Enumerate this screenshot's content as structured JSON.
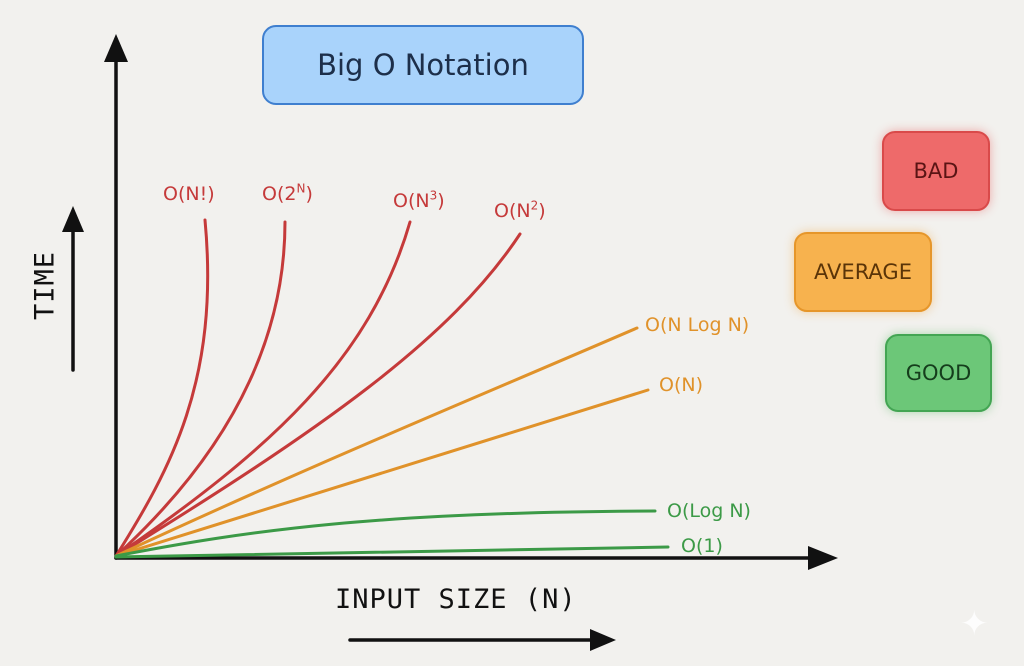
{
  "title": "Big O Notation",
  "axes": {
    "x_label": "INPUT SIZE (N)",
    "y_label": "TIME"
  },
  "curves": [
    {
      "id": "factorial",
      "base": "O(N",
      "sup": "",
      "tail": "!)",
      "category": "bad"
    },
    {
      "id": "exponential",
      "base": "O(2",
      "sup": "N",
      "tail": ")",
      "category": "bad"
    },
    {
      "id": "cubic",
      "base": "O(N",
      "sup": "3",
      "tail": ")",
      "category": "bad"
    },
    {
      "id": "quadratic",
      "base": "O(N",
      "sup": "2",
      "tail": ")",
      "category": "bad"
    },
    {
      "id": "nlogn",
      "base": "O(N Log N)",
      "sup": "",
      "tail": "",
      "category": "average"
    },
    {
      "id": "linear",
      "base": "O(N)",
      "sup": "",
      "tail": "",
      "category": "average"
    },
    {
      "id": "logn",
      "base": "O(Log N)",
      "sup": "",
      "tail": "",
      "category": "good"
    },
    {
      "id": "constant",
      "base": "O(1)",
      "sup": "",
      "tail": "",
      "category": "good"
    }
  ],
  "legend": [
    {
      "id": "bad",
      "label": "BAD",
      "color": "#ee6a6a"
    },
    {
      "id": "average",
      "label": "AVERAGE",
      "color": "#f7b24e"
    },
    {
      "id": "good",
      "label": "GOOD",
      "color": "#6cc778"
    }
  ],
  "colors": {
    "bad": "#c53a3a",
    "average": "#e0922a",
    "good": "#3c9a47",
    "title_fill": "#a9d3fb",
    "title_border": "#3f7fcf"
  },
  "icons": {
    "corner": "sparkle-icon"
  }
}
